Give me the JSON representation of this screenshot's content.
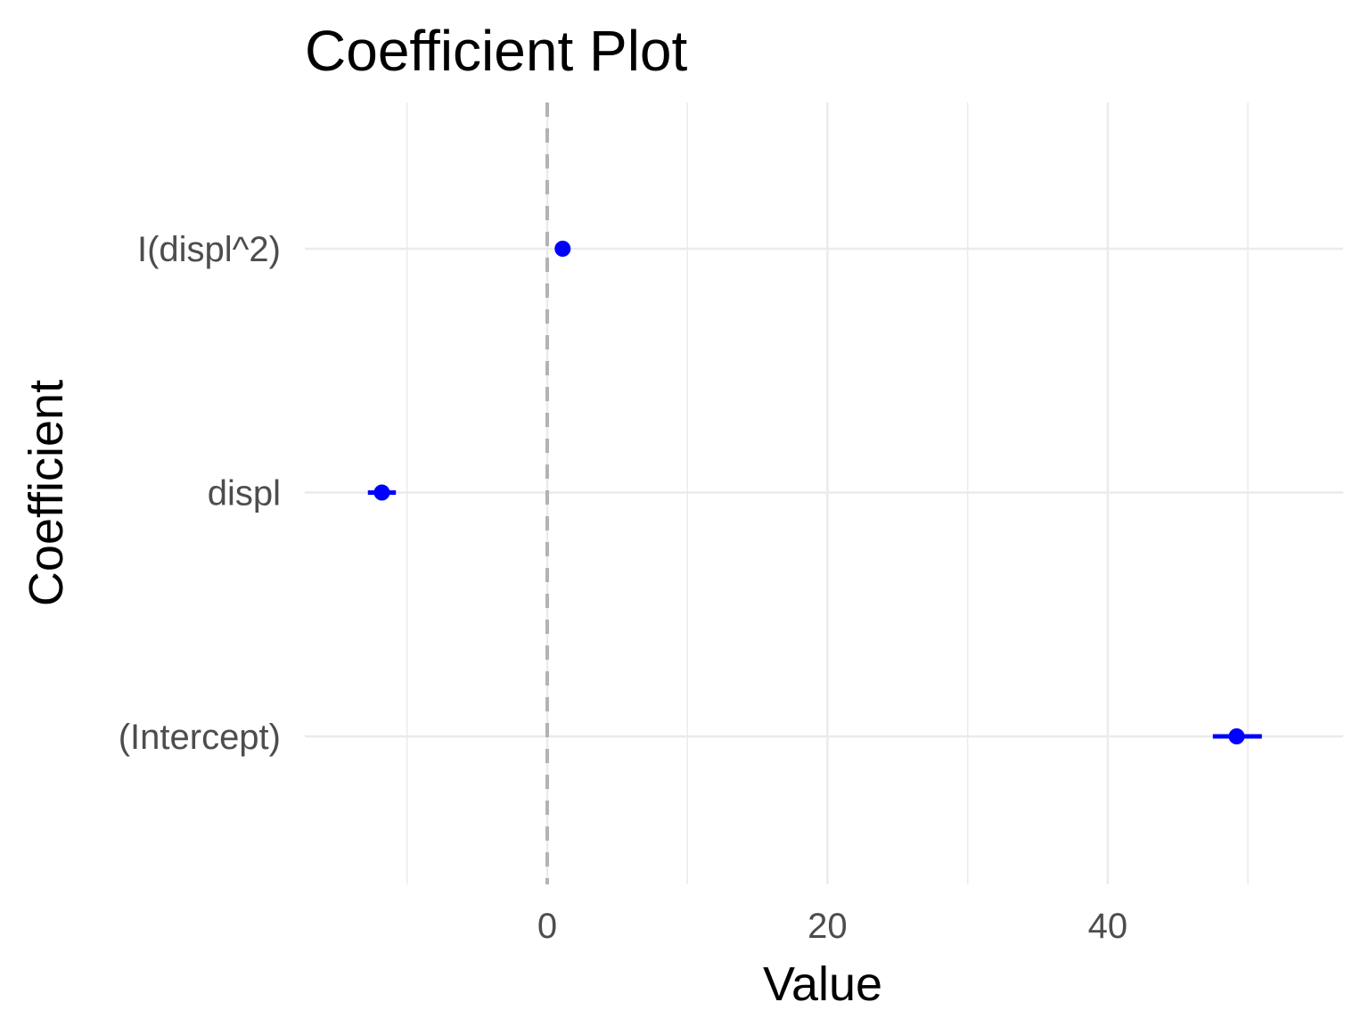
{
  "chart_data": {
    "type": "scatter",
    "title": "Coefficient Plot",
    "xlabel": "Value",
    "ylabel": "Coefficient",
    "categories": [
      "(Intercept)",
      "displ",
      "I(displ^2)"
    ],
    "points": [
      {
        "term": "(Intercept)",
        "estimate": 49.2,
        "lower": 47.5,
        "upper": 51.0
      },
      {
        "term": "displ",
        "estimate": -11.8,
        "lower": -12.8,
        "upper": -10.8
      },
      {
        "term": "I(displ^2)",
        "estimate": 1.1,
        "lower": 0.9,
        "upper": 1.3
      }
    ],
    "xlim": [
      -17.3,
      56.8
    ],
    "xticks": [
      0,
      20,
      40
    ],
    "xticklabels": [
      "0",
      "20",
      "40"
    ],
    "reference_line": 0,
    "grid": true,
    "legend": "none",
    "colors": {
      "points": "#0000ff",
      "grid": "#ebebeb",
      "reference": "#b3b3b3"
    }
  }
}
